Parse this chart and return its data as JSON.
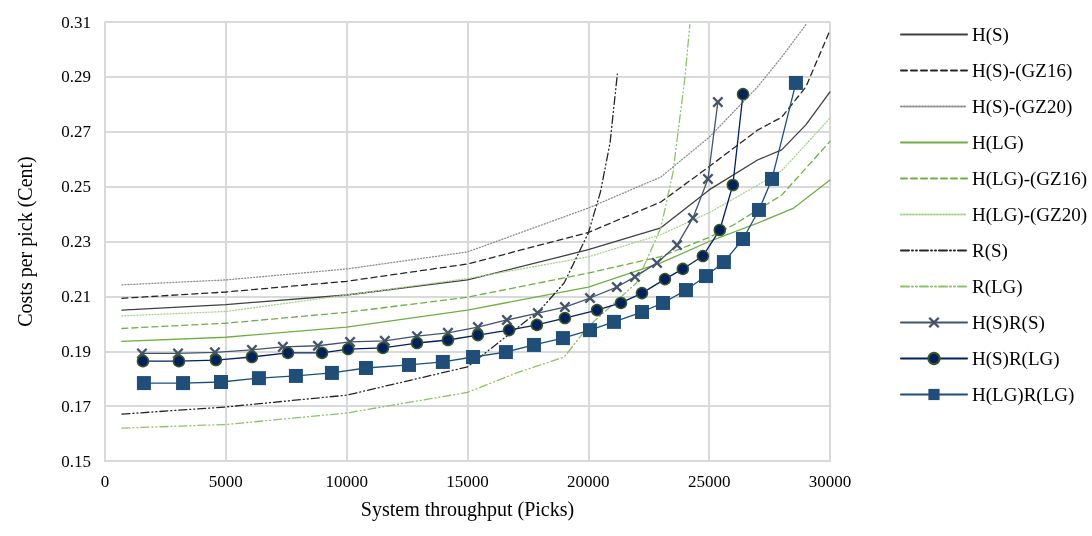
{
  "chart_data": {
    "type": "line",
    "xlabel": "System throughput (Picks)",
    "ylabel": "Costs per pick (Cent)",
    "xlim": [
      0,
      30000
    ],
    "xticks": [
      0,
      5000,
      10000,
      15000,
      20000,
      25000,
      30000
    ],
    "ylim": [
      0.15,
      0.31
    ],
    "yticks": [
      0.15,
      0.17,
      0.19,
      0.21,
      0.23,
      0.25,
      0.27,
      0.29,
      0.31
    ],
    "grid": true,
    "legend": "right",
    "series": [
      {
        "name": "H(S)",
        "color": "#404040",
        "line_style": "solid",
        "marker": "none",
        "x": [
          700,
          5000,
          10000,
          15000,
          20000,
          23000,
          25000,
          27000,
          28000,
          29000,
          30000
        ],
        "values": [
          0.205,
          0.207,
          0.2105,
          0.216,
          0.227,
          0.235,
          0.2488,
          0.2597,
          0.2634,
          0.2725,
          0.2845
        ]
      },
      {
        "name": "H(S)-(GZ16)",
        "color": "#262626",
        "line_style": "dashed",
        "marker": "none",
        "x": [
          700,
          5000,
          10000,
          15000,
          20000,
          23000,
          25000,
          27000,
          28000,
          29000,
          30000
        ],
        "values": [
          0.2093,
          0.2116,
          0.2155,
          0.2218,
          0.2333,
          0.2444,
          0.2573,
          0.2706,
          0.2753,
          0.2863,
          0.307
        ]
      },
      {
        "name": "H(S)-(GZ20)",
        "color": "#8c8c8c",
        "line_style": "dotted",
        "marker": "none",
        "x": [
          700,
          5000,
          10000,
          15000,
          20000,
          23000,
          25000,
          27000,
          28000,
          29000
        ],
        "values": [
          0.2142,
          0.216,
          0.22,
          0.2262,
          0.2422,
          0.2535,
          0.268,
          0.2863,
          0.2972,
          0.309
        ]
      },
      {
        "name": "H(LG)",
        "color": "#70ad47",
        "line_style": "solid",
        "marker": "none",
        "x": [
          700,
          5000,
          10000,
          15000,
          20000,
          23000,
          25000,
          27000,
          28500,
          30000
        ],
        "values": [
          0.1936,
          0.1951,
          0.1988,
          0.205,
          0.2134,
          0.2222,
          0.23,
          0.2367,
          0.2422,
          0.2524
        ]
      },
      {
        "name": "H(LG)-(GZ16)",
        "color": "#70ad47",
        "line_style": "dashed",
        "marker": "none",
        "x": [
          700,
          5000,
          10000,
          15000,
          20000,
          23000,
          25000,
          26000,
          28000,
          30000
        ],
        "values": [
          0.1983,
          0.2002,
          0.2042,
          0.2097,
          0.2185,
          0.2245,
          0.2315,
          0.236,
          0.2469,
          0.2665
        ]
      },
      {
        "name": "H(LG)-(GZ20)",
        "color": "#a9d18e",
        "line_style": "dotted",
        "marker": "none",
        "x": [
          700,
          5000,
          10000,
          15000,
          20000,
          23000,
          25000,
          27000,
          28000,
          30000
        ],
        "values": [
          0.2029,
          0.2045,
          0.2105,
          0.2165,
          0.2244,
          0.2325,
          0.2405,
          0.2505,
          0.2558,
          0.275
        ]
      },
      {
        "name": "R(S)",
        "color": "#262626",
        "line_style": "dashdot",
        "marker": "none",
        "x": [
          700,
          5000,
          10000,
          15000,
          18000,
          19000,
          20000,
          20500,
          20900,
          21200
        ],
        "values": [
          0.1671,
          0.1697,
          0.174,
          0.1843,
          0.205,
          0.2149,
          0.2331,
          0.248,
          0.266,
          0.291
        ]
      },
      {
        "name": "R(LG)",
        "color": "#8fc06a",
        "line_style": "dashdot",
        "marker": "none",
        "x": [
          700,
          5000,
          10000,
          15000,
          17000,
          19000,
          20000,
          22000,
          23000,
          23500,
          24000,
          24200
        ],
        "values": [
          0.162,
          0.1633,
          0.1675,
          0.175,
          0.182,
          0.1879,
          0.199,
          0.215,
          0.235,
          0.255,
          0.29,
          0.309
        ]
      },
      {
        "name": "H(S)R(S)",
        "color": "#44546a",
        "line_style": "solid",
        "marker": "cross",
        "x": [
          1530,
          3020,
          4550,
          6080,
          7360,
          8810,
          10140,
          11580,
          12910,
          14190,
          15430,
          16630,
          17910,
          19030,
          20070,
          21180,
          21930,
          22840,
          23670,
          24330,
          24950,
          25360
        ],
        "values": [
          0.1892,
          0.1892,
          0.1896,
          0.1905,
          0.1916,
          0.192,
          0.1934,
          0.1938,
          0.1955,
          0.1967,
          0.1988,
          0.2014,
          0.2039,
          0.2061,
          0.2094,
          0.2134,
          0.2171,
          0.2222,
          0.2287,
          0.2386,
          0.2528,
          0.2808
        ]
      },
      {
        "name": "H(S)R(LG)",
        "color": "#002060",
        "line_style": "solid",
        "marker": "circle",
        "x": [
          1570,
          3060,
          4590,
          6080,
          7570,
          8980,
          10060,
          11500,
          12910,
          14190,
          15430,
          16720,
          17870,
          19030,
          20360,
          21350,
          22220,
          23170,
          23910,
          24740,
          25440,
          25980,
          26400
        ],
        "values": [
          0.1864,
          0.1864,
          0.1868,
          0.1879,
          0.1894,
          0.1894,
          0.1908,
          0.1912,
          0.193,
          0.1941,
          0.1959,
          0.1977,
          0.1996,
          0.2021,
          0.205,
          0.2076,
          0.2112,
          0.2163,
          0.22,
          0.2247,
          0.2342,
          0.2506,
          0.2837
        ]
      },
      {
        "name": "H(LG)R(LG)",
        "color": "#1f4e79",
        "line_style": "solid",
        "marker": "square",
        "x": [
          1610,
          3230,
          4800,
          6370,
          7900,
          9390,
          10800,
          12580,
          13980,
          15230,
          16590,
          17750,
          18950,
          20070,
          21060,
          22220,
          23090,
          24040,
          24870,
          25610,
          26400,
          27060,
          27600,
          28590
        ],
        "values": [
          0.1784,
          0.1784,
          0.1788,
          0.1802,
          0.181,
          0.1821,
          0.1839,
          0.185,
          0.1861,
          0.1879,
          0.1897,
          0.1923,
          0.1948,
          0.1977,
          0.2007,
          0.2043,
          0.2076,
          0.2123,
          0.2174,
          0.2225,
          0.2309,
          0.2415,
          0.2528,
          0.2878
        ]
      }
    ]
  }
}
